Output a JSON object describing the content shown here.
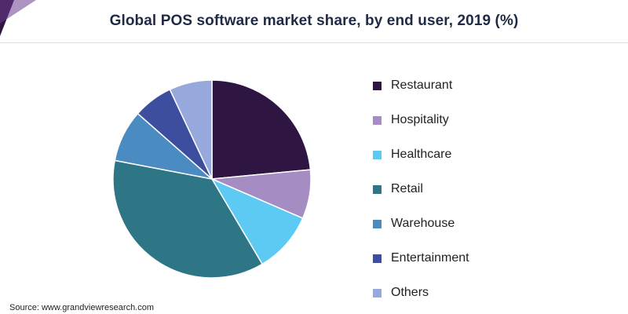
{
  "title": "Global POS software market share, by end user, 2019 (%)",
  "source": "Source: www.grandviewresearch.com",
  "chart_data": {
    "type": "pie",
    "title": "Global POS software market share, by end user, 2019 (%)",
    "categories": [
      "Restaurant",
      "Hospitality",
      "Healthcare",
      "Retail",
      "Warehouse",
      "Entertainment",
      "Others"
    ],
    "values": [
      23.5,
      8.0,
      10.0,
      36.5,
      8.5,
      6.5,
      7.0
    ],
    "colors": [
      "#2f1541",
      "#a58dc4",
      "#5ccaf3",
      "#2e7585",
      "#4a8bc2",
      "#3e4e9e",
      "#97a8dd"
    ],
    "legend_position": "right"
  }
}
